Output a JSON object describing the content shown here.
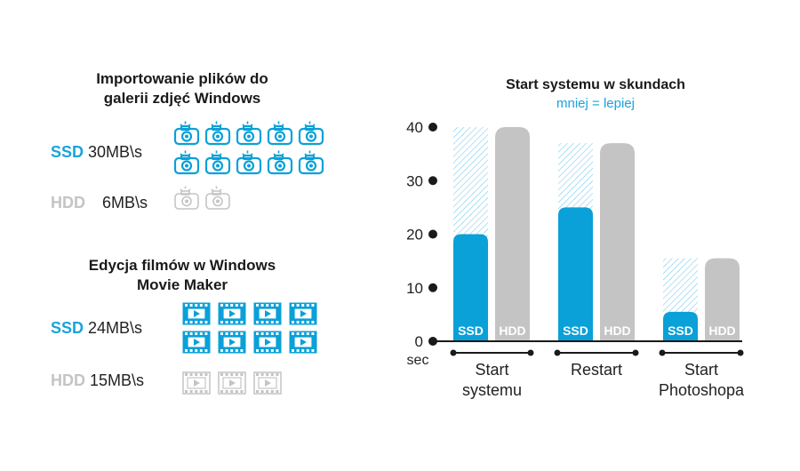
{
  "left": {
    "import": {
      "title_line1": "Importowanie plików do",
      "title_line2": "galerii zdjęć Windows",
      "ssd_label": "SSD",
      "ssd_speed": "30MB\\s",
      "hdd_label": "HDD",
      "hdd_speed": "6MB\\s",
      "ssd_icon_count": 10,
      "hdd_icon_count": 2,
      "icon": "camera-icon"
    },
    "movie": {
      "title_line1": "Edycja filmów w Windows",
      "title_line2": "Movie Maker",
      "ssd_label": "SSD",
      "ssd_speed": "24MB\\s",
      "hdd_label": "HDD",
      "hdd_speed": "15MB\\s",
      "ssd_icon_count": 8,
      "hdd_icon_count": 3,
      "icon": "film-frame-icon"
    }
  },
  "colors": {
    "ssd": "#0aa0d8",
    "hdd": "#c4c4c4",
    "axis": "#1a1a1a"
  },
  "chart_data": {
    "type": "bar",
    "title": "Start systemu w skundach",
    "subtitle": "mniej = lepiej",
    "categories": [
      "Start\nsystemu",
      "Restart",
      "Start\nPhotoshopa"
    ],
    "series": [
      {
        "name": "SSD",
        "values": [
          20,
          25,
          5.5
        ]
      },
      {
        "name": "HDD",
        "values": [
          40,
          37,
          15.5
        ]
      }
    ],
    "yticks": [
      "0",
      "10",
      "20",
      "30",
      "40"
    ],
    "ylabel_unit": "sec",
    "ylim": [
      0,
      40
    ]
  }
}
